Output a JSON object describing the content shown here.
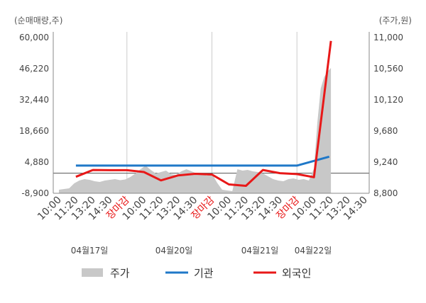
{
  "chart_data": {
    "type": "line",
    "left_axis": {
      "unit_label": "(순매매량,주)",
      "ticks": [
        "60,000",
        "46,220",
        "32,440",
        "18,660",
        "4,880",
        "-8,900"
      ],
      "range": [
        -8900,
        60000
      ]
    },
    "right_axis": {
      "unit_label": "(주가,원)",
      "ticks": [
        "11,000",
        "10,560",
        "10,120",
        "9,680",
        "9,240",
        "8,800"
      ],
      "range": [
        8800,
        11000
      ]
    },
    "x_labels": [
      {
        "text": "10:00",
        "red": false
      },
      {
        "text": "11:20",
        "red": false
      },
      {
        "text": "13:20",
        "red": false
      },
      {
        "text": "14:30",
        "red": false
      },
      {
        "text": "장마감",
        "red": true
      },
      {
        "text": "10:00",
        "red": false
      },
      {
        "text": "11:20",
        "red": false
      },
      {
        "text": "13:20",
        "red": false
      },
      {
        "text": "14:30",
        "red": false
      },
      {
        "text": "장마감",
        "red": true
      },
      {
        "text": "10:00",
        "red": false
      },
      {
        "text": "11:20",
        "red": false
      },
      {
        "text": "13:20",
        "red": false
      },
      {
        "text": "14:30",
        "red": false
      },
      {
        "text": "장마감",
        "red": true
      },
      {
        "text": "10:00",
        "red": false
      },
      {
        "text": "11:20",
        "red": false
      },
      {
        "text": "13:20",
        "red": false
      },
      {
        "text": "14:30",
        "red": false
      }
    ],
    "dates": [
      "04월17일",
      "04월20일",
      "04월21일",
      "04월22일"
    ],
    "legend": [
      {
        "name": "주가",
        "color": "#c8c8c8",
        "kind": "area"
      },
      {
        "name": "기관",
        "color": "#1f78c8",
        "kind": "line"
      },
      {
        "name": "외국인",
        "color": "#e81818",
        "kind": "line"
      }
    ],
    "series": [
      {
        "name": "주가",
        "axis": "right",
        "x": [
          0,
          0.3,
          0.6,
          0.9,
          1.2,
          1.5,
          1.8,
          2.1,
          2.4,
          2.7,
          3,
          3.3,
          3.6,
          3.9,
          4.2,
          4.5,
          4.8,
          5.1,
          5.4,
          5.7,
          6,
          6.3,
          6.6,
          6.9,
          7.2,
          7.5,
          7.8,
          8.1,
          8.4,
          8.7,
          9,
          9.3,
          9.6,
          9.9,
          10.2,
          10.5,
          10.8,
          11.1,
          11.4,
          11.7,
          12,
          12.3,
          12.6,
          12.9,
          13.2,
          13.5,
          13.8,
          14.1,
          14.4,
          14.7,
          15,
          15.2,
          15.4,
          15.6,
          15.8,
          16
        ],
        "values": [
          8850,
          8860,
          8870,
          8940,
          8980,
          9000,
          8990,
          8970,
          8960,
          8980,
          8990,
          9000,
          8985,
          8995,
          9030,
          9080,
          9140,
          9190,
          9130,
          9080,
          9100,
          9120,
          9070,
          9060,
          9110,
          9140,
          9110,
          9080,
          9070,
          9050,
          9080,
          8950,
          8850,
          8840,
          8830,
          9140,
          9120,
          9130,
          9110,
          9100,
          9080,
          9040,
          9000,
          8980,
          8970,
          9000,
          9010,
          8990,
          9000,
          8980,
          9150,
          9800,
          10280,
          10440,
          10520,
          10570
        ]
      },
      {
        "name": "기관",
        "axis": "left",
        "x": [
          1,
          14,
          15.9
        ],
        "values": [
          3360,
          3360,
          7300
        ]
      },
      {
        "name": "외국인",
        "axis": "left",
        "x": [
          1,
          2,
          3,
          4,
          5,
          6,
          7,
          8,
          9,
          10,
          11,
          12,
          13,
          14,
          15,
          16
        ],
        "values": [
          -1600,
          1400,
          1300,
          1300,
          500,
          -3200,
          -1000,
          -300,
          -600,
          -5000,
          -5600,
          1400,
          0,
          -400,
          -1800,
          58500
        ]
      }
    ]
  }
}
